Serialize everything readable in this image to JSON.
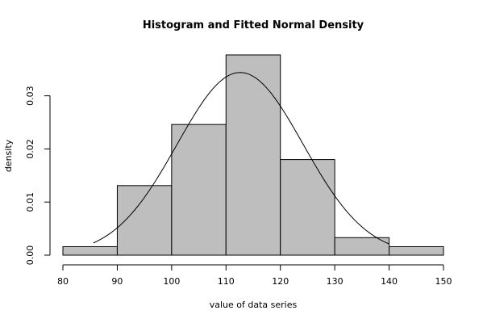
{
  "chart_data": {
    "type": "bar",
    "title": "Histogram and Fitted Normal Density",
    "xlabel": "value of data series",
    "ylabel": "density",
    "bins": [
      {
        "from": 80,
        "to": 90,
        "density": 0.0016
      },
      {
        "from": 90,
        "to": 100,
        "density": 0.0131
      },
      {
        "from": 100,
        "to": 110,
        "density": 0.0246
      },
      {
        "from": 110,
        "to": 120,
        "density": 0.0377
      },
      {
        "from": 120,
        "to": 130,
        "density": 0.018
      },
      {
        "from": 130,
        "to": 140,
        "density": 0.0033
      },
      {
        "from": 140,
        "to": 150,
        "density": 0.0016
      }
    ],
    "x_ticks": [
      80,
      90,
      100,
      110,
      120,
      130,
      140,
      150
    ],
    "y_ticks": [
      0.0,
      0.01,
      0.02,
      0.03
    ],
    "y_tick_labels": [
      "0.00",
      "0.01",
      "0.02",
      "0.03"
    ],
    "xlim": [
      80,
      150
    ],
    "ylim": [
      0,
      0.0377
    ],
    "fitted_normal": {
      "mean": 112.6,
      "sd": 11.6,
      "x_range": [
        85.6,
        140.0
      ]
    },
    "grid": false
  }
}
